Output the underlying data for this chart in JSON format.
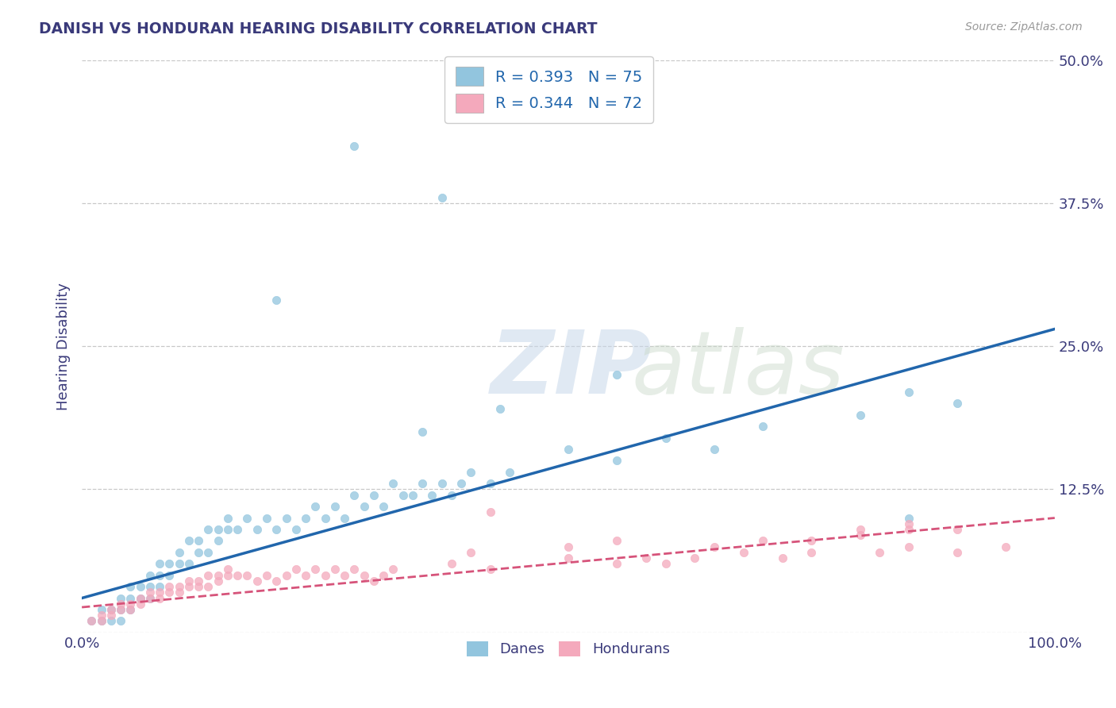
{
  "title": "DANISH VS HONDURAN HEARING DISABILITY CORRELATION CHART",
  "source": "Source: ZipAtlas.com",
  "xlabel": "",
  "ylabel": "Hearing Disability",
  "xlim": [
    0,
    1
  ],
  "ylim": [
    0,
    0.5
  ],
  "yticks": [
    0.0,
    0.125,
    0.25,
    0.375,
    0.5
  ],
  "ytick_labels": [
    "",
    "12.5%",
    "25.0%",
    "37.5%",
    "50.0%"
  ],
  "xtick_labels": [
    "0.0%",
    "100.0%"
  ],
  "legend_R": [
    "R = 0.393",
    "R = 0.344"
  ],
  "legend_N": [
    "N = 75",
    "N = 72"
  ],
  "dane_color": "#92c5de",
  "honduran_color": "#f4a9bc",
  "dane_line_color": "#2166ac",
  "honduran_line_color": "#d6537a",
  "dane_trend_x": [
    0.0,
    1.0
  ],
  "dane_trend_y": [
    0.03,
    0.265
  ],
  "honduran_trend_x": [
    0.0,
    1.0
  ],
  "honduran_trend_y": [
    0.022,
    0.1
  ],
  "background_color": "#ffffff",
  "grid_color": "#c8c8c8",
  "title_color": "#3a3a7a",
  "axis_label_color": "#3a3a7a",
  "tick_color": "#3a3a7a",
  "danes_x": [
    0.01,
    0.02,
    0.02,
    0.03,
    0.03,
    0.04,
    0.04,
    0.04,
    0.05,
    0.05,
    0.05,
    0.06,
    0.06,
    0.07,
    0.07,
    0.07,
    0.08,
    0.08,
    0.08,
    0.09,
    0.09,
    0.1,
    0.1,
    0.11,
    0.11,
    0.12,
    0.12,
    0.13,
    0.13,
    0.14,
    0.14,
    0.15,
    0.15,
    0.16,
    0.17,
    0.18,
    0.19,
    0.2,
    0.21,
    0.22,
    0.23,
    0.24,
    0.25,
    0.26,
    0.27,
    0.28,
    0.29,
    0.3,
    0.31,
    0.32,
    0.33,
    0.34,
    0.35,
    0.36,
    0.37,
    0.38,
    0.39,
    0.4,
    0.42,
    0.44,
    0.5,
    0.55,
    0.6,
    0.65,
    0.7,
    0.8,
    0.85,
    0.9,
    0.2,
    0.28,
    0.35,
    0.37,
    0.43,
    0.55,
    0.85
  ],
  "danes_y": [
    0.01,
    0.01,
    0.02,
    0.02,
    0.01,
    0.03,
    0.02,
    0.01,
    0.03,
    0.02,
    0.04,
    0.04,
    0.03,
    0.05,
    0.04,
    0.03,
    0.06,
    0.05,
    0.04,
    0.06,
    0.05,
    0.07,
    0.06,
    0.08,
    0.06,
    0.07,
    0.08,
    0.09,
    0.07,
    0.09,
    0.08,
    0.09,
    0.1,
    0.09,
    0.1,
    0.09,
    0.1,
    0.09,
    0.1,
    0.09,
    0.1,
    0.11,
    0.1,
    0.11,
    0.1,
    0.12,
    0.11,
    0.12,
    0.11,
    0.13,
    0.12,
    0.12,
    0.13,
    0.12,
    0.13,
    0.12,
    0.13,
    0.14,
    0.13,
    0.14,
    0.16,
    0.15,
    0.17,
    0.16,
    0.18,
    0.19,
    0.21,
    0.2,
    0.29,
    0.425,
    0.175,
    0.38,
    0.195,
    0.225,
    0.1
  ],
  "hondurans_x": [
    0.01,
    0.02,
    0.02,
    0.03,
    0.03,
    0.04,
    0.04,
    0.05,
    0.05,
    0.06,
    0.06,
    0.07,
    0.07,
    0.08,
    0.08,
    0.09,
    0.09,
    0.1,
    0.1,
    0.11,
    0.11,
    0.12,
    0.12,
    0.13,
    0.13,
    0.14,
    0.14,
    0.15,
    0.15,
    0.16,
    0.17,
    0.18,
    0.19,
    0.2,
    0.21,
    0.22,
    0.23,
    0.24,
    0.25,
    0.26,
    0.27,
    0.28,
    0.29,
    0.3,
    0.31,
    0.32,
    0.38,
    0.42,
    0.5,
    0.55,
    0.58,
    0.6,
    0.63,
    0.68,
    0.72,
    0.75,
    0.82,
    0.85,
    0.9,
    0.95,
    0.42,
    0.8,
    0.85,
    0.9,
    0.4,
    0.5,
    0.55,
    0.65,
    0.7,
    0.75,
    0.8,
    0.85
  ],
  "hondurans_y": [
    0.01,
    0.015,
    0.01,
    0.02,
    0.015,
    0.025,
    0.02,
    0.025,
    0.02,
    0.03,
    0.025,
    0.035,
    0.03,
    0.035,
    0.03,
    0.04,
    0.035,
    0.04,
    0.035,
    0.04,
    0.045,
    0.04,
    0.045,
    0.05,
    0.04,
    0.05,
    0.045,
    0.05,
    0.055,
    0.05,
    0.05,
    0.045,
    0.05,
    0.045,
    0.05,
    0.055,
    0.05,
    0.055,
    0.05,
    0.055,
    0.05,
    0.055,
    0.05,
    0.045,
    0.05,
    0.055,
    0.06,
    0.055,
    0.065,
    0.06,
    0.065,
    0.06,
    0.065,
    0.07,
    0.065,
    0.07,
    0.07,
    0.075,
    0.07,
    0.075,
    0.105,
    0.09,
    0.095,
    0.09,
    0.07,
    0.075,
    0.08,
    0.075,
    0.08,
    0.08,
    0.085,
    0.09
  ]
}
